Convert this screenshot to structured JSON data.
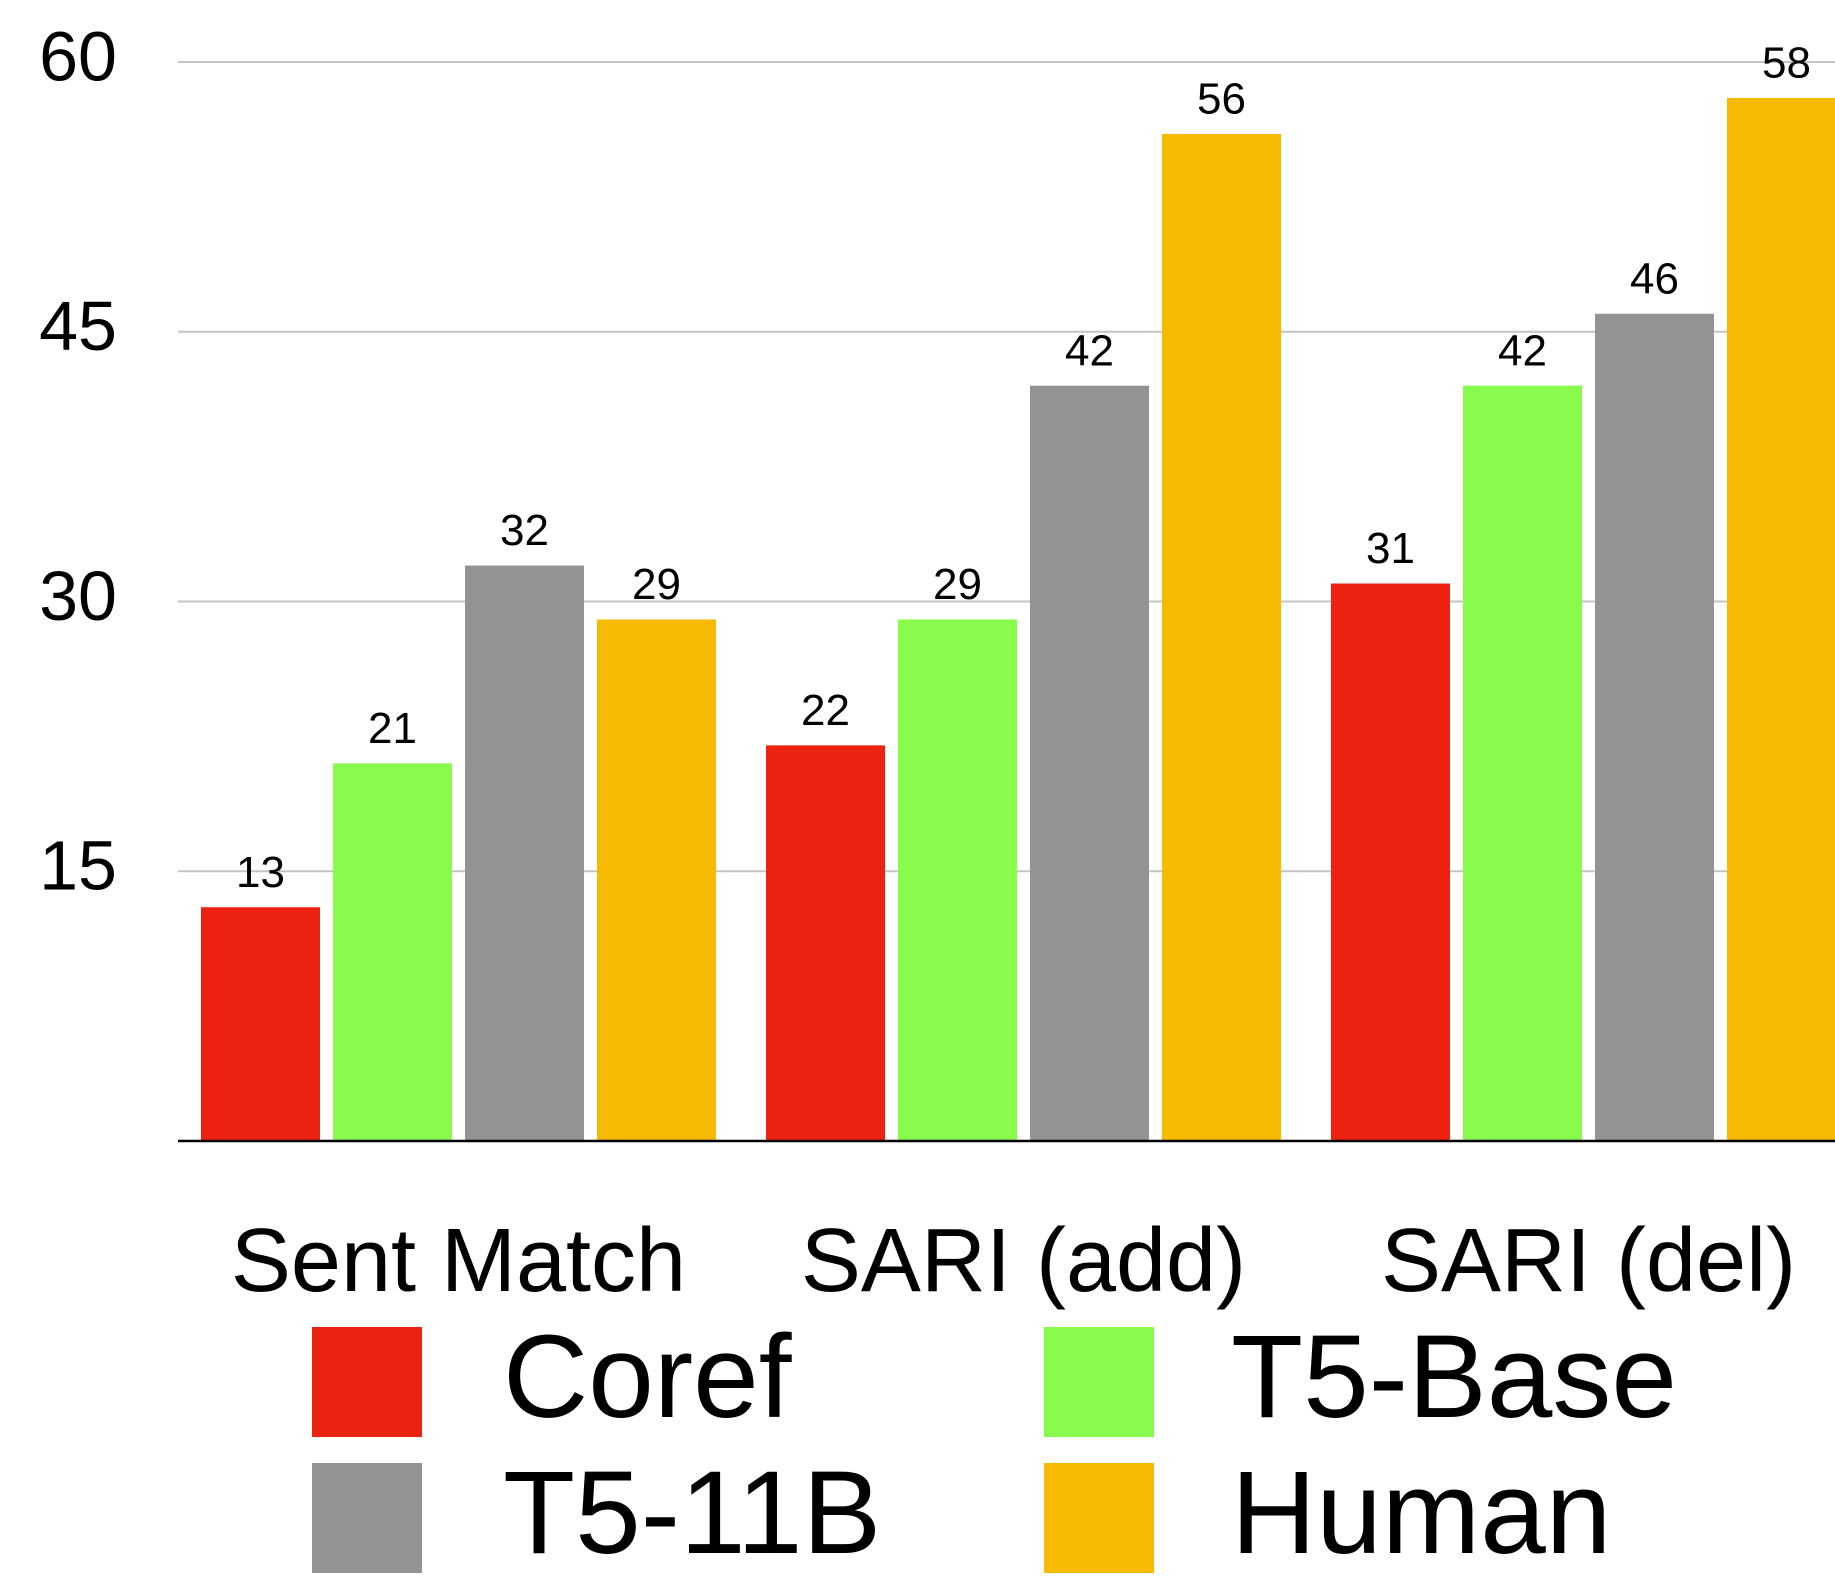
{
  "chart_data": {
    "type": "bar",
    "categories": [
      "Sent Match",
      "SARI (add)",
      "SARI (del)"
    ],
    "series": [
      {
        "name": "Coref",
        "color": "#ee2211",
        "values": [
          13,
          22,
          31
        ]
      },
      {
        "name": "T5-Base",
        "color": "#88fb4c",
        "values": [
          21,
          29,
          42
        ]
      },
      {
        "name": "T5-11B",
        "color": "#939393",
        "values": [
          32,
          42,
          46
        ]
      },
      {
        "name": "Human",
        "color": "#f6ba02",
        "values": [
          29,
          56,
          58
        ]
      }
    ],
    "ylim": [
      0,
      60
    ],
    "yticks": [
      15,
      30,
      45,
      60
    ],
    "grid": true
  }
}
